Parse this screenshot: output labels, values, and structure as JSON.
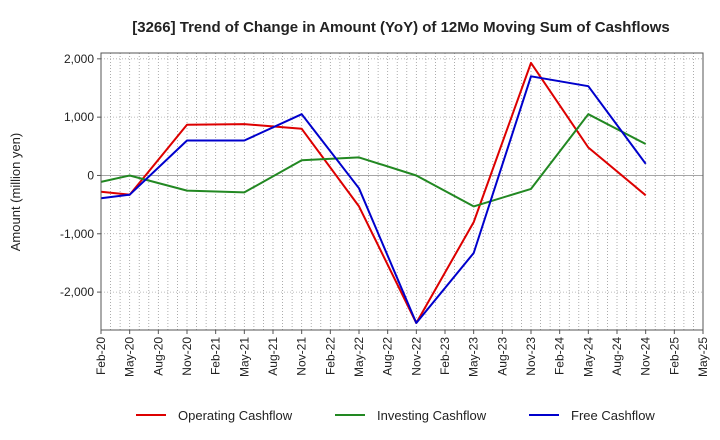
{
  "chart_data": {
    "type": "line",
    "title": "[3266]  Trend of Change in Amount (YoY) of 12Mo Moving Sum of Cashflows",
    "xlabel": "",
    "ylabel": "Amount (million yen)",
    "ylim": [
      -2650,
      2100
    ],
    "yticks": [
      2000,
      1000,
      0,
      -1000,
      -2000
    ],
    "ytick_labels": [
      "2,000",
      "1,000",
      "0",
      "-1,000",
      "-2,000"
    ],
    "categories": [
      "Feb-20",
      "May-20",
      "Aug-20",
      "Nov-20",
      "Feb-21",
      "May-21",
      "Aug-21",
      "Nov-21",
      "Feb-22",
      "May-22",
      "Aug-22",
      "Nov-22",
      "Feb-23",
      "May-23",
      "Aug-23",
      "Nov-23",
      "Feb-24",
      "May-24",
      "Aug-24",
      "Nov-24",
      "Feb-25",
      "May-25"
    ],
    "grid": true,
    "legend_position": "bottom",
    "series": [
      {
        "name": "Operating Cashflow",
        "color": "#dd0000",
        "values": [
          -280,
          -330,
          null,
          870,
          null,
          880,
          null,
          800,
          null,
          -530,
          null,
          -2530,
          null,
          -800,
          null,
          1930,
          null,
          480,
          null,
          -340,
          null,
          null
        ]
      },
      {
        "name": "Investing Cashflow",
        "color": "#228822",
        "values": [
          -110,
          0,
          null,
          -260,
          null,
          -290,
          null,
          260,
          null,
          310,
          null,
          0,
          null,
          -530,
          null,
          -230,
          null,
          1050,
          null,
          540,
          null,
          null
        ]
      },
      {
        "name": "Free Cashflow",
        "color": "#0000cc",
        "values": [
          -390,
          -330,
          null,
          600,
          null,
          600,
          null,
          1050,
          null,
          -220,
          null,
          -2530,
          null,
          -1330,
          null,
          1700,
          null,
          1530,
          null,
          200,
          null,
          null
        ]
      }
    ]
  }
}
